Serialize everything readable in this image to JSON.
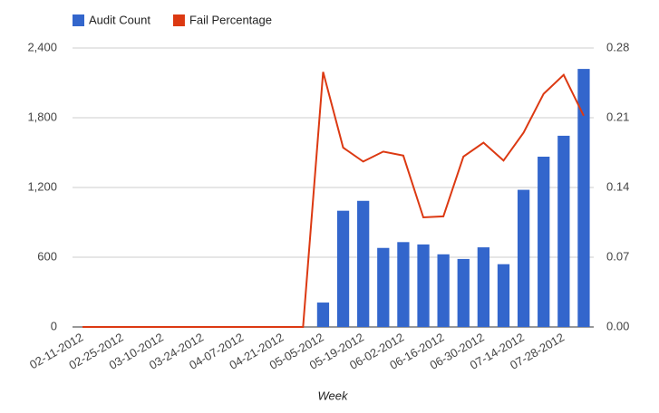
{
  "chart_data": {
    "type": "bar-line",
    "x_label": "Week",
    "categories": [
      "02-11-2012",
      null,
      "02-25-2012",
      null,
      "03-10-2012",
      null,
      "03-24-2012",
      null,
      "04-07-2012",
      null,
      "04-21-2012",
      null,
      "05-05-2012",
      null,
      "05-19-2012",
      null,
      "06-02-2012",
      null,
      "06-16-2012",
      null,
      "06-30-2012",
      null,
      "07-14-2012",
      null,
      "07-28-2012",
      null
    ],
    "series": [
      {
        "name": "Audit Count",
        "type": "bar",
        "color": "#3366cc",
        "values": [
          0,
          0,
          0,
          0,
          0,
          0,
          0,
          0,
          0,
          0,
          0,
          0,
          210,
          1000,
          1085,
          680,
          730,
          710,
          625,
          585,
          685,
          540,
          1180,
          1465,
          1645,
          2220
        ]
      },
      {
        "name": "Fail Percentage",
        "type": "line",
        "axis": "y2",
        "color": "#dc3912",
        "values": [
          0,
          0,
          0,
          0,
          0,
          0,
          0,
          0,
          0,
          0,
          0,
          0,
          0.256,
          0.18,
          0.166,
          0.176,
          0.172,
          0.11,
          0.111,
          0.171,
          0.185,
          0.167,
          0.195,
          0.234,
          0.253,
          0.212
        ]
      }
    ],
    "ylim": [
      0,
      2400
    ],
    "yticks": [
      0,
      600,
      {
        "value": 1200,
        "label": "1,200"
      },
      {
        "value": 1800,
        "label": "1,800"
      },
      {
        "value": 2400,
        "label": "2,400"
      }
    ],
    "y2lim": [
      0,
      0.28
    ],
    "y2ticks": [
      {
        "value": 0,
        "label": "0.00"
      },
      {
        "value": 0.07,
        "label": "0.07"
      },
      {
        "value": 0.14,
        "label": "0.14"
      },
      {
        "value": 0.21,
        "label": "0.21"
      },
      {
        "value": 0.28,
        "label": "0.28"
      }
    ],
    "grid": true,
    "legend": "top"
  }
}
